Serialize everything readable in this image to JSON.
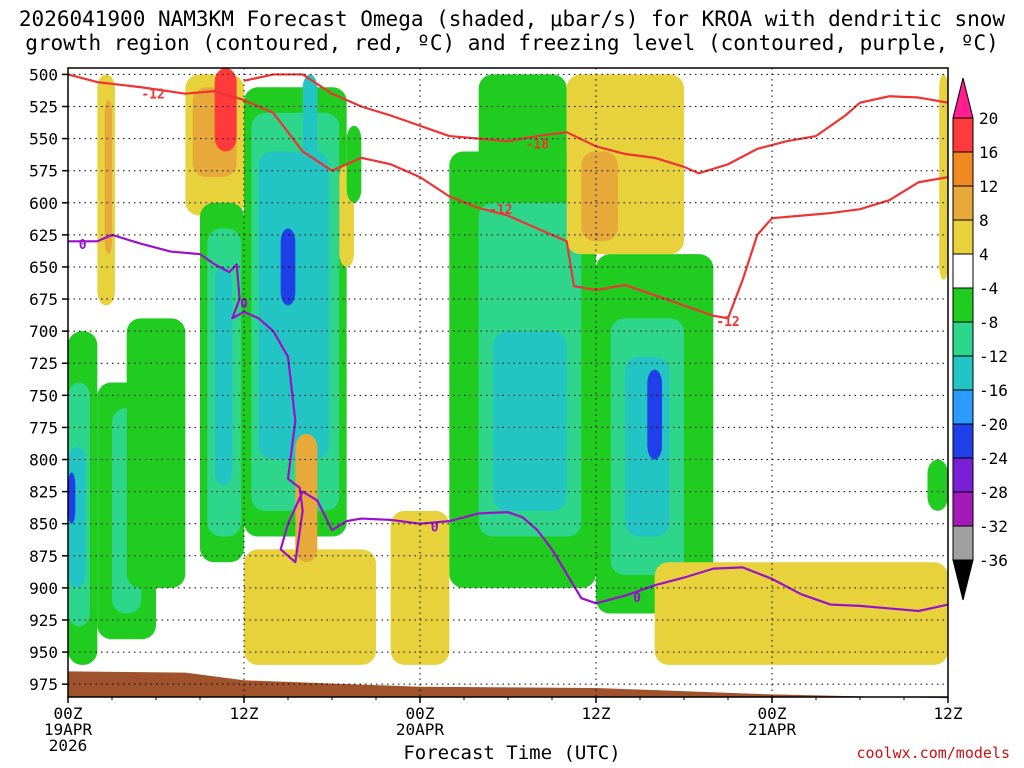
{
  "title_line1": "2026041900 NAM3KM Forecast Omega (shaded, μbar/s) for KROA with dendritic snow",
  "title_line2": "growth region (contoured, red, ºC) and freezing level (contoured, purple, ºC)",
  "x_axis_title": "Forecast Time (UTC)",
  "credit": "coolwx.com/models",
  "chart_data": {
    "type": "heatmap",
    "title": "2026041900 NAM3KM Forecast Omega (shaded, μbar/s) for KROA with dendritic snow growth region (contoured, red, ºC) and freezing level (contoured, purple, ºC)",
    "xlabel": "Forecast Time (UTC)",
    "ylabel": "",
    "x_ticks": [
      {
        "hour": 0,
        "lines": [
          "00Z",
          "19APR",
          "2026"
        ]
      },
      {
        "hour": 12,
        "lines": [
          "12Z"
        ]
      },
      {
        "hour": 24,
        "lines": [
          "00Z",
          "20APR"
        ]
      },
      {
        "hour": 36,
        "lines": [
          "12Z"
        ]
      },
      {
        "hour": 48,
        "lines": [
          "00Z",
          "21APR"
        ]
      },
      {
        "hour": 60,
        "lines": [
          "12Z"
        ]
      }
    ],
    "xlim": [
      0,
      60
    ],
    "y_ticks": [
      500,
      525,
      550,
      575,
      600,
      625,
      650,
      675,
      700,
      725,
      750,
      775,
      800,
      825,
      850,
      875,
      900,
      925,
      950,
      975
    ],
    "ylim": [
      495,
      985
    ],
    "grid": true,
    "colorbar": {
      "labels": [
        "20",
        "16",
        "12",
        "8",
        "4",
        "-4",
        "-8",
        "-12",
        "-16",
        "-20",
        "-24",
        "-28",
        "-32",
        "-36"
      ],
      "colors": [
        "#ff1f8f",
        "#ff3a3a",
        "#f08a20",
        "#e6a93a",
        "#e8d23c",
        "#ffffff",
        "#1fcc1f",
        "#2ed68c",
        "#22c4c4",
        "#2b9cff",
        "#1f3fe8",
        "#7a1fd6",
        "#a41ab8",
        "#a0a0a0",
        "#000000"
      ]
    },
    "omega_cells": [
      {
        "x0": 0,
        "x1": 2,
        "y0": 700,
        "y1": 960,
        "v": -8
      },
      {
        "x0": 0,
        "x1": 1.5,
        "y0": 740,
        "y1": 930,
        "v": -12
      },
      {
        "x0": 0,
        "x1": 1.2,
        "y0": 790,
        "y1": 900,
        "v": -16
      },
      {
        "x0": 0,
        "x1": 0.5,
        "y0": 810,
        "y1": 850,
        "v": -24
      },
      {
        "x0": 2,
        "x1": 3.2,
        "y0": 500,
        "y1": 680,
        "v": 6
      },
      {
        "x0": 2.5,
        "x1": 3,
        "y0": 520,
        "y1": 640,
        "v": 10
      },
      {
        "x0": 2,
        "x1": 6,
        "y0": 740,
        "y1": 940,
        "v": -8
      },
      {
        "x0": 3,
        "x1": 5,
        "y0": 760,
        "y1": 920,
        "v": -12
      },
      {
        "x0": 4,
        "x1": 8,
        "y0": 690,
        "y1": 900,
        "v": -8
      },
      {
        "x0": 8,
        "x1": 12,
        "y0": 500,
        "y1": 610,
        "v": 6
      },
      {
        "x0": 8.5,
        "x1": 11.5,
        "y0": 510,
        "y1": 580,
        "v": 10
      },
      {
        "x0": 10,
        "x1": 11.5,
        "y0": 495,
        "y1": 560,
        "v": 18
      },
      {
        "x0": 9,
        "x1": 12,
        "y0": 600,
        "y1": 880,
        "v": -8
      },
      {
        "x0": 9.5,
        "x1": 11.8,
        "y0": 620,
        "y1": 860,
        "v": -12
      },
      {
        "x0": 10,
        "x1": 11.2,
        "y0": 650,
        "y1": 820,
        "v": -16
      },
      {
        "x0": 12,
        "x1": 19,
        "y0": 510,
        "y1": 860,
        "v": -8
      },
      {
        "x0": 12.5,
        "x1": 18.5,
        "y0": 530,
        "y1": 840,
        "v": -12
      },
      {
        "x0": 13,
        "x1": 17.8,
        "y0": 560,
        "y1": 800,
        "v": -16
      },
      {
        "x0": 14.5,
        "x1": 15.5,
        "y0": 620,
        "y1": 680,
        "v": -24
      },
      {
        "x0": 16,
        "x1": 17,
        "y0": 500,
        "y1": 600,
        "v": -16
      },
      {
        "x0": 12,
        "x1": 21,
        "y0": 870,
        "y1": 960,
        "v": 6
      },
      {
        "x0": 15.5,
        "x1": 17,
        "y0": 780,
        "y1": 880,
        "v": 10
      },
      {
        "x0": 18.5,
        "x1": 19.5,
        "y0": 570,
        "y1": 650,
        "v": 6
      },
      {
        "x0": 19,
        "x1": 20,
        "y0": 540,
        "y1": 600,
        "v": -8
      },
      {
        "x0": 22,
        "x1": 26,
        "y0": 840,
        "y1": 960,
        "v": 6
      },
      {
        "x0": 28,
        "x1": 34,
        "y0": 500,
        "y1": 620,
        "v": -8
      },
      {
        "x0": 26,
        "x1": 36,
        "y0": 560,
        "y1": 900,
        "v": -8
      },
      {
        "x0": 28,
        "x1": 35,
        "y0": 600,
        "y1": 860,
        "v": -12
      },
      {
        "x0": 29,
        "x1": 34,
        "y0": 700,
        "y1": 840,
        "v": -16
      },
      {
        "x0": 36,
        "x1": 44,
        "y0": 640,
        "y1": 920,
        "v": -8
      },
      {
        "x0": 37,
        "x1": 42,
        "y0": 690,
        "y1": 890,
        "v": -12
      },
      {
        "x0": 38,
        "x1": 41,
        "y0": 720,
        "y1": 860,
        "v": -16
      },
      {
        "x0": 39.5,
        "x1": 40.5,
        "y0": 730,
        "y1": 800,
        "v": -24
      },
      {
        "x0": 34,
        "x1": 42,
        "y0": 500,
        "y1": 640,
        "v": 6
      },
      {
        "x0": 35,
        "x1": 37.5,
        "y0": 560,
        "y1": 630,
        "v": 10
      },
      {
        "x0": 40,
        "x1": 60,
        "y0": 880,
        "y1": 960,
        "v": 6
      },
      {
        "x0": 45,
        "x1": 51,
        "y0": 890,
        "y1": 940,
        "v": 6
      },
      {
        "x0": 59.4,
        "x1": 60,
        "y0": 500,
        "y1": 660,
        "v": 6
      },
      {
        "x0": 58.6,
        "x1": 60,
        "y0": 800,
        "y1": 840,
        "v": -8
      }
    ],
    "dendritic_contours": [
      {
        "label": "-12",
        "points": [
          [
            0,
            500
          ],
          [
            2,
            506
          ],
          [
            5,
            510
          ],
          [
            8,
            515
          ],
          [
            10,
            513
          ],
          [
            12,
            520
          ],
          [
            14,
            530
          ],
          [
            16,
            560
          ],
          [
            18,
            575
          ],
          [
            20,
            565
          ],
          [
            22,
            570
          ],
          [
            24,
            580
          ],
          [
            26,
            595
          ],
          [
            28,
            604
          ],
          [
            30,
            610
          ],
          [
            32,
            620
          ],
          [
            34,
            630
          ],
          [
            34.5,
            665
          ],
          [
            36,
            668
          ],
          [
            38,
            664
          ],
          [
            40,
            672
          ],
          [
            42,
            680
          ],
          [
            44,
            688
          ],
          [
            45,
            690
          ]
        ]
      },
      {
        "label": "-12",
        "points": [
          [
            45,
            690
          ],
          [
            46,
            660
          ],
          [
            47,
            625
          ],
          [
            48,
            612
          ],
          [
            50,
            610
          ],
          [
            52,
            608
          ],
          [
            54,
            605
          ],
          [
            56,
            598
          ],
          [
            58,
            584
          ],
          [
            60,
            580
          ]
        ]
      },
      {
        "label": "-18",
        "points": [
          [
            12,
            505
          ],
          [
            14,
            500
          ],
          [
            16,
            500
          ],
          [
            18,
            515
          ],
          [
            20,
            525
          ],
          [
            22,
            532
          ],
          [
            24,
            540
          ],
          [
            26,
            548
          ],
          [
            28,
            550
          ],
          [
            30,
            552
          ],
          [
            32,
            548
          ],
          [
            34,
            545
          ],
          [
            36,
            556
          ],
          [
            38,
            562
          ],
          [
            40,
            565
          ],
          [
            42,
            572
          ],
          [
            43,
            577
          ],
          [
            45,
            570
          ],
          [
            47,
            558
          ],
          [
            49,
            552
          ],
          [
            51,
            548
          ],
          [
            53,
            532
          ],
          [
            54,
            522
          ],
          [
            56,
            517
          ],
          [
            58,
            518
          ],
          [
            60,
            522
          ]
        ]
      }
    ],
    "freezing_contours": [
      {
        "label": "0",
        "points": [
          [
            0,
            630
          ],
          [
            2,
            630
          ],
          [
            3,
            625
          ],
          [
            5,
            632
          ],
          [
            7,
            638
          ],
          [
            9,
            640
          ],
          [
            10,
            648
          ],
          [
            11,
            654
          ],
          [
            11.5,
            648
          ],
          [
            11.7,
            675
          ],
          [
            11.2,
            690
          ],
          [
            12,
            685
          ],
          [
            13,
            690
          ],
          [
            14,
            700
          ],
          [
            15,
            720
          ],
          [
            15.5,
            770
          ],
          [
            15,
            815
          ],
          [
            15.8,
            822
          ],
          [
            16,
            840
          ],
          [
            15.5,
            880
          ],
          [
            14.5,
            870
          ],
          [
            15,
            850
          ],
          [
            16,
            825
          ],
          [
            17,
            832
          ],
          [
            18,
            855
          ],
          [
            19,
            848
          ],
          [
            20,
            846
          ],
          [
            22,
            847
          ],
          [
            24,
            850
          ],
          [
            26,
            848
          ],
          [
            28,
            842
          ],
          [
            30,
            841
          ],
          [
            31,
            845
          ],
          [
            32,
            855
          ],
          [
            33,
            870
          ],
          [
            35,
            908
          ],
          [
            36,
            912
          ],
          [
            38,
            906
          ],
          [
            40,
            898
          ],
          [
            42,
            892
          ],
          [
            44,
            885
          ],
          [
            46,
            884
          ],
          [
            48,
            893
          ],
          [
            50,
            905
          ],
          [
            52,
            913
          ],
          [
            54,
            914
          ],
          [
            56,
            916
          ],
          [
            58,
            918
          ],
          [
            60,
            913
          ]
        ]
      }
    ],
    "terrain": {
      "label": "ground",
      "points": [
        [
          0,
          965
        ],
        [
          8,
          966
        ],
        [
          12,
          972
        ],
        [
          24,
          977
        ],
        [
          36,
          978
        ],
        [
          48,
          983
        ],
        [
          60,
          986
        ]
      ]
    }
  }
}
